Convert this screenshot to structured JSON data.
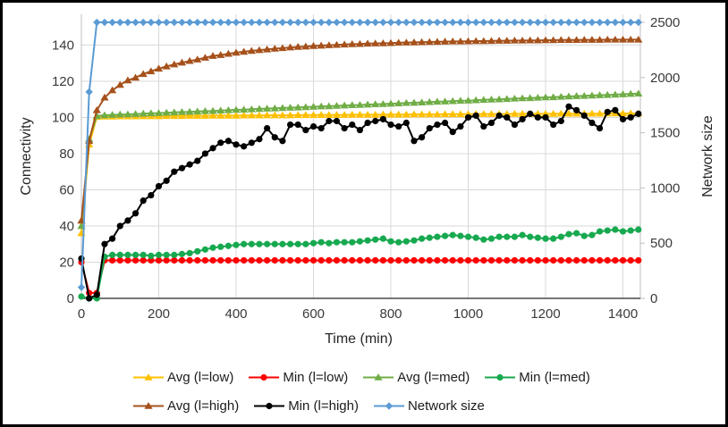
{
  "chart_data": {
    "type": "line",
    "title": "",
    "xlabel": "Time (min)",
    "ylabel_left": "Connectivity",
    "ylabel_right": "Network size",
    "grid": true,
    "legend_position": "bottom",
    "x_ticks": [
      0,
      200,
      400,
      600,
      800,
      1000,
      1200,
      1400
    ],
    "y_left_ticks": [
      0,
      20,
      40,
      60,
      80,
      100,
      120,
      140
    ],
    "y_right_ticks": [
      0,
      500,
      1000,
      1500,
      2000,
      2500
    ],
    "x_range": [
      0,
      1445
    ],
    "y_left_range": [
      0,
      157
    ],
    "y_right_range": [
      0,
      2573
    ],
    "x": [
      0,
      20,
      40,
      60,
      80,
      100,
      120,
      140,
      160,
      180,
      200,
      220,
      240,
      260,
      280,
      300,
      320,
      340,
      360,
      380,
      400,
      420,
      440,
      460,
      480,
      500,
      520,
      540,
      560,
      580,
      600,
      620,
      640,
      660,
      680,
      700,
      720,
      740,
      760,
      780,
      800,
      820,
      840,
      860,
      880,
      900,
      920,
      940,
      960,
      980,
      1000,
      1020,
      1040,
      1060,
      1080,
      1100,
      1120,
      1140,
      1160,
      1180,
      1200,
      1220,
      1240,
      1260,
      1280,
      1300,
      1320,
      1340,
      1360,
      1380,
      1400,
      1420,
      1440
    ],
    "series": [
      {
        "name": "Avg (l=low)",
        "axis": "left",
        "color": "#FFC000",
        "marker": "triangle",
        "values": [
          36,
          85,
          100.3,
          100.5,
          100.5,
          100.6,
          100.6,
          100.6,
          100.7,
          100.7,
          100.7,
          100.8,
          100.8,
          100.8,
          100.9,
          100.9,
          100.9,
          101,
          101,
          101,
          101,
          101.1,
          101.1,
          101.1,
          101.2,
          101.2,
          101.2,
          101.2,
          101.3,
          101.3,
          101.3,
          101.4,
          101.4,
          101.4,
          101.4,
          101.5,
          101.5,
          101.5,
          101.5,
          101.6,
          101.6,
          101.6,
          101.6,
          101.7,
          101.7,
          101.7,
          101.7,
          101.8,
          101.8,
          101.8,
          101.8,
          101.9,
          101.9,
          101.9,
          101.9,
          101.9,
          102,
          102,
          102,
          102,
          102,
          102,
          102.1,
          102.1,
          102.1,
          102.1,
          102.1,
          102.1,
          102.2,
          102.2,
          102.2,
          102.2,
          102.2
        ]
      },
      {
        "name": "Min (l=low)",
        "axis": "left",
        "color": "#FF0000",
        "marker": "circle",
        "values": [
          20,
          3,
          3,
          21,
          21,
          21,
          21,
          21,
          21,
          21,
          21,
          21,
          21,
          21,
          21,
          21,
          21,
          21,
          21,
          21,
          21,
          21,
          21,
          21,
          21,
          21,
          21,
          21,
          21,
          21,
          21,
          21,
          21,
          21,
          21,
          21,
          21,
          21,
          21,
          21,
          21,
          21,
          21,
          21,
          21,
          21,
          21,
          21,
          21,
          21,
          21,
          21,
          21,
          21,
          21,
          21,
          21,
          21,
          21,
          21,
          21,
          21,
          21,
          21,
          21,
          21,
          21,
          21,
          21,
          21,
          21,
          21,
          21
        ]
      },
      {
        "name": "Avg (l=med)",
        "axis": "left",
        "color": "#70AD47",
        "marker": "triangle",
        "values": [
          40,
          88,
          100.8,
          101.2,
          101.4,
          101.6,
          101.7,
          101.9,
          102.1,
          102.3,
          102.4,
          102.6,
          102.8,
          103,
          103.1,
          103.3,
          103.5,
          103.6,
          103.8,
          104,
          104.2,
          104.3,
          104.5,
          104.7,
          104.9,
          105,
          105.2,
          105.4,
          105.5,
          105.7,
          105.9,
          106.1,
          106.2,
          106.4,
          106.6,
          106.8,
          106.9,
          107.1,
          107.3,
          107.4,
          107.6,
          107.8,
          108,
          108.1,
          108.3,
          108.5,
          108.7,
          108.8,
          109,
          109.2,
          109.3,
          109.5,
          109.7,
          109.9,
          110,
          110.2,
          110.4,
          110.6,
          110.7,
          110.9,
          111.1,
          111.2,
          111.4,
          111.6,
          111.8,
          111.9,
          112.1,
          112.3,
          112.4,
          112.6,
          112.8,
          113,
          113.2
        ]
      },
      {
        "name": "Min (l=med)",
        "axis": "left",
        "color": "#17A94F",
        "marker": "circle",
        "values": [
          1,
          0,
          0,
          23,
          24,
          24,
          24,
          24,
          24,
          23.5,
          24,
          24,
          24,
          24.5,
          25,
          26,
          27,
          28,
          28.5,
          29,
          29.5,
          30,
          30,
          30,
          30,
          30,
          30,
          30,
          30,
          30,
          30.5,
          31,
          30.5,
          31,
          31,
          31,
          31.5,
          32,
          32.5,
          33,
          31.5,
          31,
          31.5,
          32,
          33,
          33.5,
          34,
          34.5,
          35,
          34.5,
          34,
          33.5,
          32.5,
          33,
          34,
          34,
          34,
          35,
          34,
          33.5,
          33,
          33,
          34,
          35.5,
          36,
          34.5,
          35,
          37,
          37.5,
          38,
          37,
          37.5,
          38
        ]
      },
      {
        "name": "Avg (l=high)",
        "axis": "left",
        "color": "#A6511B",
        "marker": "triangle",
        "values": [
          43,
          87,
          104,
          111,
          115,
          118,
          120.5,
          122,
          124,
          125.5,
          127,
          128.2,
          129.3,
          130.3,
          131.2,
          132,
          133,
          134,
          134.5,
          135.2,
          135.8,
          136.3,
          136.8,
          137.2,
          137.6,
          138,
          138.3,
          138.7,
          139,
          139.2,
          139.5,
          139.7,
          139.9,
          140.1,
          140.3,
          140.5,
          140.6,
          140.8,
          140.9,
          141,
          141.1,
          141.3,
          141.4,
          141.5,
          141.6,
          141.7,
          141.8,
          141.9,
          142,
          142,
          142.1,
          142.2,
          142.2,
          142.3,
          142.4,
          142.4,
          142.5,
          142.5,
          142.6,
          142.6,
          142.7,
          142.7,
          142.8,
          142.8,
          142.8,
          142.9,
          142.9,
          142.9,
          143,
          143,
          143,
          143,
          143
        ]
      },
      {
        "name": "Min (l=high)",
        "axis": "left",
        "color": "#000000",
        "marker": "circle",
        "values": [
          22,
          0,
          2,
          30,
          33,
          40,
          43,
          47,
          54,
          57,
          62,
          65,
          70,
          72,
          74,
          76,
          80,
          83,
          86,
          87,
          85,
          84,
          86,
          88,
          94,
          89,
          87,
          96,
          96,
          93,
          95,
          94,
          98,
          98,
          94,
          96,
          93,
          97,
          98,
          99,
          96,
          95,
          97,
          87,
          89,
          94,
          96,
          97,
          92,
          95,
          100,
          101,
          95,
          97,
          101,
          100,
          96,
          99,
          102,
          100,
          100,
          96,
          98,
          106,
          104,
          101,
          97,
          94,
          103,
          104,
          99,
          100,
          102
        ]
      },
      {
        "name": "Network size",
        "axis": "right",
        "color": "#5B9BD5",
        "marker": "diamond",
        "values": [
          100,
          1870,
          2500,
          2500,
          2500,
          2500,
          2500,
          2500,
          2500,
          2500,
          2500,
          2500,
          2500,
          2500,
          2500,
          2500,
          2500,
          2500,
          2500,
          2500,
          2500,
          2500,
          2500,
          2500,
          2500,
          2500,
          2500,
          2500,
          2500,
          2500,
          2500,
          2500,
          2500,
          2500,
          2500,
          2500,
          2500,
          2500,
          2500,
          2500,
          2500,
          2500,
          2500,
          2500,
          2500,
          2500,
          2500,
          2500,
          2500,
          2500,
          2500,
          2500,
          2500,
          2500,
          2500,
          2500,
          2500,
          2500,
          2500,
          2500,
          2500,
          2500,
          2500,
          2500,
          2500,
          2500,
          2500,
          2500,
          2500,
          2500,
          2500,
          2500,
          2500
        ]
      }
    ],
    "style_colors": {
      "gridline": "#D9D9D9",
      "axis_light": "#BFBFBF",
      "axis_dark": "#262626",
      "tick_text": "#3A3A3A"
    }
  }
}
